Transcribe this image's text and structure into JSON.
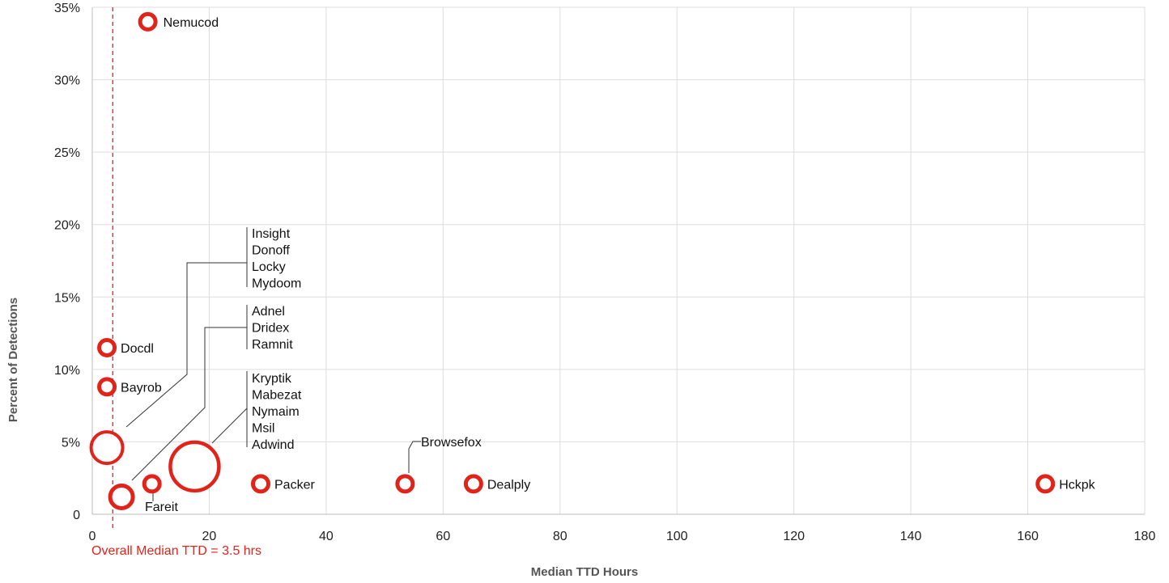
{
  "chart_data": {
    "type": "scatter",
    "xlabel": "Median TTD Hours",
    "ylabel": "Percent of Detections",
    "xlim": [
      0,
      180
    ],
    "ylim": [
      0,
      35
    ],
    "x_ticks": [
      0,
      20,
      40,
      60,
      80,
      100,
      120,
      140,
      160,
      180
    ],
    "x_tick_labels": [
      "0",
      "20",
      "40",
      "60",
      "80",
      "100",
      "120",
      "140",
      "160",
      "180"
    ],
    "y_ticks": [
      0,
      5,
      10,
      15,
      20,
      25,
      30,
      35
    ],
    "y_tick_labels": [
      "0",
      "5%",
      "10%",
      "15%",
      "20%",
      "25%",
      "30%",
      "35%"
    ],
    "grid": true,
    "marker_color": "#e2231a",
    "median_line": {
      "x": 3.5,
      "label": "Overall Median TTD = 3.5 hrs",
      "color": "#e2231a"
    },
    "points": [
      {
        "x": 9.5,
        "y": 34.0,
        "size": "small",
        "label": "Nemucod"
      },
      {
        "x": 2.5,
        "y": 11.5,
        "size": "small",
        "label": "Docdl"
      },
      {
        "x": 2.5,
        "y": 8.8,
        "size": "small",
        "label": "Bayrob"
      },
      {
        "x": 2.5,
        "y": 4.6,
        "size": "large",
        "label": "Insight\nDonoff\nLocky\nMydoom"
      },
      {
        "x": 5.0,
        "y": 1.2,
        "size": "medium",
        "label": "Adnel\nDridex\nRamnit"
      },
      {
        "x": 17.5,
        "y": 3.3,
        "size": "xlarge",
        "label": "Kryptik\nMabezat\nNymaim\nMsil\nAdwind"
      },
      {
        "x": 10.2,
        "y": 2.1,
        "size": "small",
        "label": "Fareit"
      },
      {
        "x": 28.8,
        "y": 2.1,
        "size": "small",
        "label": "Packer"
      },
      {
        "x": 53.5,
        "y": 2.1,
        "size": "small",
        "label": "Browsefox"
      },
      {
        "x": 65.2,
        "y": 2.1,
        "size": "small",
        "label": "Dealply"
      },
      {
        "x": 163.0,
        "y": 2.1,
        "size": "small",
        "label": "Hckpk"
      }
    ]
  }
}
